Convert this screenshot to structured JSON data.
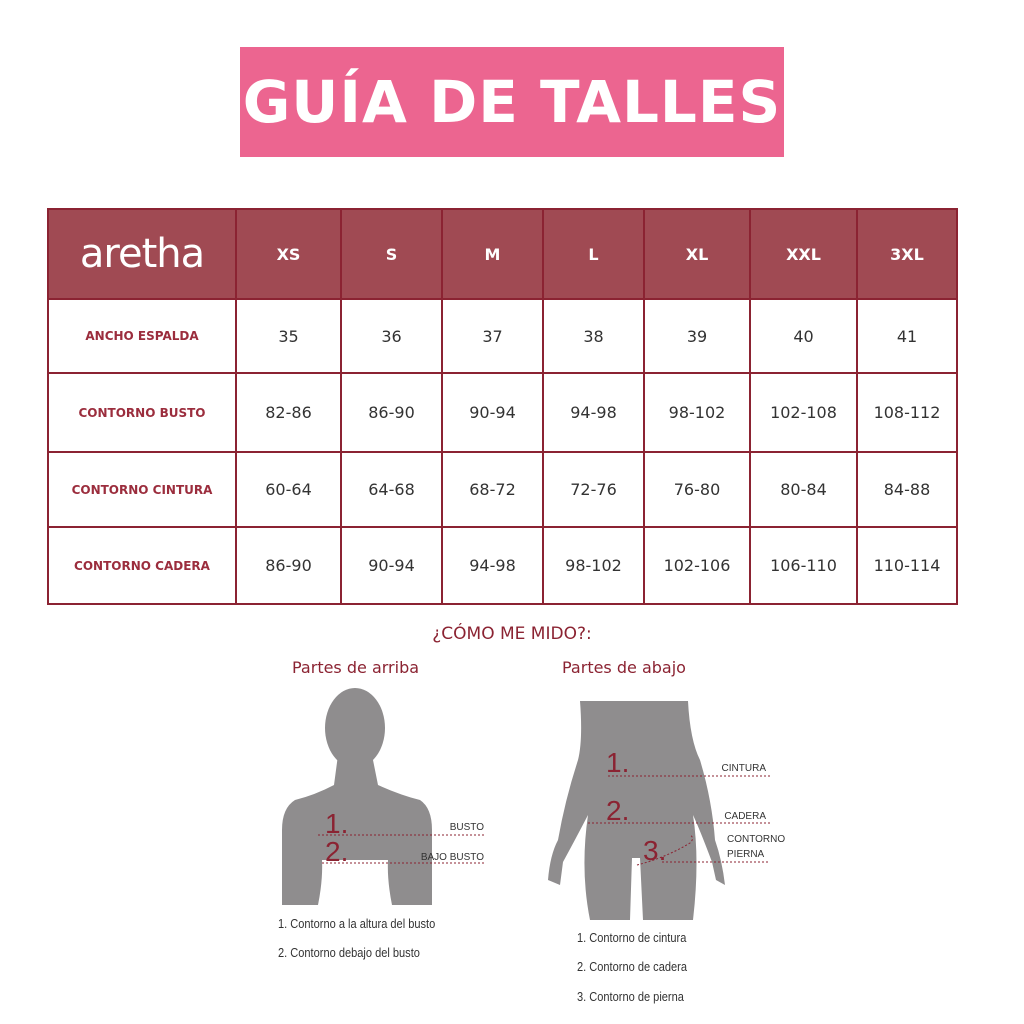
{
  "title": "GUÍA DE TALLES",
  "brand": "aretha",
  "table": {
    "sizes": [
      "XS",
      "S",
      "M",
      "L",
      "XL",
      "XXL",
      "3XL"
    ],
    "rows": [
      {
        "label": "ANCHO ESPALDA",
        "values": [
          "35",
          "36",
          "37",
          "38",
          "39",
          "40",
          "41"
        ]
      },
      {
        "label": "CONTORNO BUSTO",
        "values": [
          "82-86",
          "86-90",
          "90-94",
          "94-98",
          "98-102",
          "102-108",
          "108-112"
        ]
      },
      {
        "label": "CONTORNO CINTURA",
        "values": [
          "60-64",
          "64-68",
          "68-72",
          "72-76",
          "76-80",
          "80-84",
          "84-88"
        ]
      },
      {
        "label": "CONTORNO CADERA",
        "values": [
          "86-90",
          "90-94",
          "94-98",
          "98-102",
          "102-106",
          "106-110",
          "110-114"
        ]
      }
    ]
  },
  "how_to": {
    "heading": "¿CÓMO ME MIDO?:",
    "upper": {
      "title": "Partes de arriba",
      "markers": [
        "1.",
        "2."
      ],
      "labels": [
        "BUSTO",
        "BAJO BUSTO"
      ],
      "captions": [
        "1. Contorno a la altura del busto",
        "2. Contorno debajo del busto"
      ]
    },
    "lower": {
      "title": "Partes de abajo",
      "markers": [
        "1.",
        "2.",
        "3."
      ],
      "labels": [
        "CINTURA",
        "CADERA",
        "CONTORNO",
        "PIERNA"
      ],
      "captions": [
        "1. Contorno de cintura",
        "2. Contorno de cadera",
        "3. Contorno de pierna"
      ]
    }
  },
  "colors": {
    "title_bg": "#ec6590",
    "header_bg": "#a04a53",
    "border": "#8b2332",
    "silhouette": "#8f8d8e"
  }
}
